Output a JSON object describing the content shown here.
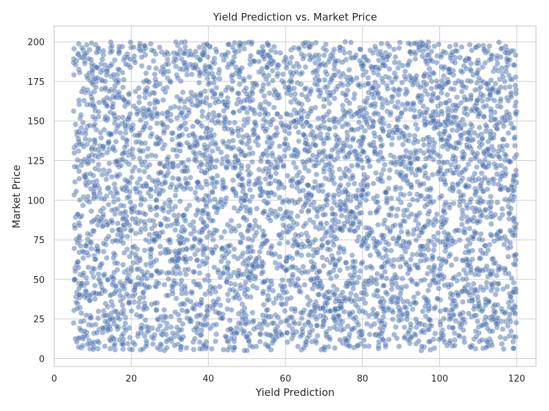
{
  "chart_data": {
    "type": "scatter",
    "title": "Yield Prediction vs. Market Price",
    "xlabel": "Yield Prediction",
    "ylabel": "Market Price",
    "xlim": [
      0,
      125
    ],
    "ylim": [
      -5,
      210
    ],
    "xticks": [
      "0",
      "20",
      "40",
      "60",
      "80",
      "100",
      "120"
    ],
    "yticks": [
      "0",
      "25",
      "50",
      "75",
      "100",
      "125",
      "150",
      "175",
      "200"
    ],
    "grid": true,
    "point_color": "#4c72b0",
    "point_alpha": 0.5,
    "point_count": 5000,
    "x_range_of_points": [
      5,
      120
    ],
    "y_range_of_points": [
      5,
      200
    ],
    "distribution": "approximately uniform random noise over the full range, no visible correlation"
  },
  "colors": {
    "background": "#ffffff",
    "plot_background": "#ffffff",
    "grid": "#cccccc",
    "spine": "#cccccc",
    "text": "#262626"
  }
}
